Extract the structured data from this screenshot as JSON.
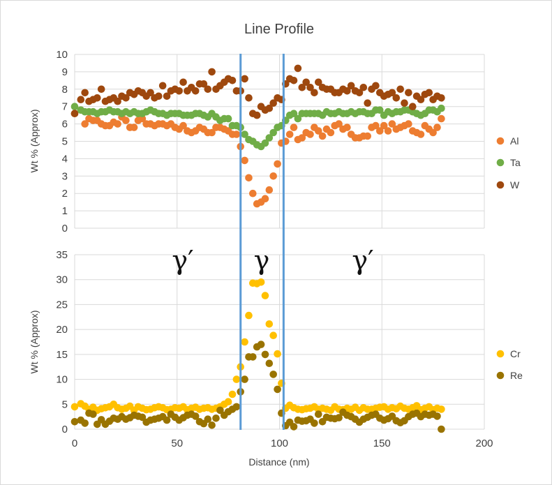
{
  "chart_data": {
    "type": "scatter",
    "title": "Line Profile",
    "xlabel": "Distance (nm)",
    "xlim": [
      0,
      200
    ],
    "xticks": [
      0,
      50,
      100,
      150,
      200
    ],
    "boundaries_x": [
      81,
      102
    ],
    "phase_labels": [
      "γ′",
      "γ",
      "γ′"
    ],
    "colors": {
      "Al": "#ED7D31",
      "Ta": "#70AD47",
      "W": "#9E480E",
      "Cr": "#FFC000",
      "Re": "#997300",
      "boundary": "#5B9BD5"
    },
    "panels": [
      {
        "ylabel": "Wt % (Approx)",
        "ylim": [
          0,
          10
        ],
        "yticks": [
          0,
          1,
          2,
          3,
          4,
          5,
          6,
          7,
          8,
          9,
          10
        ],
        "series": [
          {
            "name": "Al",
            "x": [
              0,
              3,
              5,
              7,
              9,
              11,
              13,
              15,
              17,
              19,
              21,
              23,
              25,
              27,
              29,
              31,
              33,
              35,
              37,
              39,
              41,
              43,
              45,
              47,
              49,
              51,
              53,
              55,
              57,
              59,
              61,
              63,
              65,
              67,
              69,
              71,
              73,
              75,
              77,
              79,
              81,
              83,
              85,
              87,
              89,
              91,
              93,
              95,
              97,
              99,
              101,
              103,
              105,
              107,
              109,
              111,
              113,
              115,
              117,
              119,
              121,
              123,
              125,
              127,
              129,
              131,
              133,
              135,
              137,
              139,
              141,
              143,
              145,
              147,
              149,
              151,
              153,
              155,
              157,
              159,
              161,
              163,
              165,
              167,
              169,
              171,
              173,
              175,
              177,
              179
            ],
            "y": [
              6.6,
              6.8,
              6.0,
              6.3,
              6.2,
              6.2,
              6.0,
              5.9,
              5.9,
              6.1,
              6.0,
              6.4,
              6.2,
              5.8,
              5.8,
              6.2,
              6.3,
              6.0,
              6.0,
              5.9,
              6.0,
              6.0,
              5.9,
              6.0,
              5.8,
              5.7,
              5.9,
              5.6,
              5.5,
              5.6,
              5.8,
              5.7,
              5.5,
              5.5,
              5.8,
              5.8,
              5.7,
              5.6,
              5.4,
              5.4,
              4.7,
              3.9,
              2.9,
              2.0,
              1.4,
              1.5,
              1.7,
              2.2,
              3.0,
              3.7,
              4.9,
              5.0,
              5.4,
              5.8,
              5.1,
              5.2,
              5.5,
              5.4,
              5.8,
              5.6,
              5.3,
              5.7,
              5.5,
              5.9,
              6.0,
              5.7,
              5.8,
              5.4,
              5.2,
              5.2,
              5.3,
              5.3,
              5.8,
              5.9,
              5.6,
              5.9,
              5.6,
              6.0,
              5.7,
              5.8,
              5.9,
              6.0,
              5.6,
              5.5,
              5.4,
              5.9,
              5.7,
              5.5,
              5.8,
              6.3
            ]
          },
          {
            "name": "Ta",
            "x": [
              0,
              3,
              5,
              7,
              9,
              11,
              13,
              15,
              17,
              19,
              21,
              23,
              25,
              27,
              29,
              31,
              33,
              35,
              37,
              39,
              41,
              43,
              45,
              47,
              49,
              51,
              53,
              55,
              57,
              59,
              61,
              63,
              65,
              67,
              69,
              71,
              73,
              75,
              77,
              79,
              81,
              83,
              85,
              87,
              89,
              91,
              93,
              95,
              97,
              99,
              101,
              103,
              105,
              107,
              109,
              111,
              113,
              115,
              117,
              119,
              121,
              123,
              125,
              127,
              129,
              131,
              133,
              135,
              137,
              139,
              141,
              143,
              145,
              147,
              149,
              151,
              153,
              155,
              157,
              159,
              161,
              163,
              165,
              167,
              169,
              171,
              173,
              175,
              177,
              179
            ],
            "y": [
              7.0,
              6.8,
              6.7,
              6.7,
              6.7,
              6.6,
              6.7,
              6.7,
              6.8,
              6.7,
              6.7,
              6.6,
              6.7,
              6.6,
              6.7,
              6.6,
              6.6,
              6.7,
              6.8,
              6.7,
              6.6,
              6.6,
              6.5,
              6.6,
              6.6,
              6.6,
              6.5,
              6.5,
              6.5,
              6.6,
              6.6,
              6.5,
              6.4,
              6.6,
              6.4,
              6.2,
              6.3,
              6.3,
              5.9,
              5.9,
              5.8,
              5.4,
              5.1,
              5.0,
              4.8,
              4.7,
              4.9,
              5.2,
              5.5,
              5.8,
              5.9,
              6.2,
              6.5,
              6.6,
              6.3,
              6.6,
              6.6,
              6.6,
              6.6,
              6.6,
              6.5,
              6.7,
              6.6,
              6.6,
              6.7,
              6.6,
              6.6,
              6.7,
              6.6,
              6.7,
              6.7,
              6.6,
              6.6,
              6.8,
              6.8,
              6.5,
              6.7,
              6.6,
              6.7,
              6.7,
              6.8,
              6.8,
              6.7,
              6.6,
              6.5,
              6.6,
              6.8,
              6.8,
              6.7,
              6.9
            ]
          },
          {
            "name": "W",
            "x": [
              0,
              3,
              5,
              7,
              9,
              11,
              13,
              15,
              17,
              19,
              21,
              23,
              25,
              27,
              29,
              31,
              33,
              35,
              37,
              39,
              41,
              43,
              45,
              47,
              49,
              51,
              53,
              55,
              57,
              59,
              61,
              63,
              65,
              67,
              69,
              71,
              73,
              75,
              77,
              79,
              81,
              83,
              85,
              87,
              89,
              91,
              93,
              95,
              97,
              99,
              101,
              103,
              105,
              107,
              109,
              111,
              113,
              115,
              117,
              119,
              121,
              123,
              125,
              127,
              129,
              131,
              133,
              135,
              137,
              139,
              141,
              143,
              145,
              147,
              149,
              151,
              153,
              155,
              157,
              159,
              161,
              163,
              165,
              167,
              169,
              171,
              173,
              175,
              177,
              179
            ],
            "y": [
              6.6,
              7.4,
              7.8,
              7.3,
              7.4,
              7.5,
              8.0,
              7.3,
              7.4,
              7.5,
              7.3,
              7.6,
              7.5,
              7.8,
              7.7,
              7.9,
              7.8,
              7.6,
              7.8,
              7.5,
              7.6,
              8.2,
              7.6,
              7.9,
              8.0,
              7.9,
              8.4,
              7.9,
              8.1,
              7.9,
              8.3,
              8.3,
              8.0,
              9.0,
              8.0,
              8.2,
              8.4,
              8.6,
              8.5,
              7.9,
              7.9,
              8.6,
              7.5,
              6.6,
              6.5,
              7.0,
              6.8,
              6.9,
              7.2,
              7.5,
              7.4,
              8.3,
              8.6,
              8.5,
              9.2,
              8.1,
              8.4,
              8.1,
              7.8,
              8.4,
              8.1,
              8.0,
              8.0,
              7.8,
              7.8,
              8.0,
              7.9,
              8.2,
              7.9,
              7.8,
              8.1,
              7.2,
              8.0,
              8.2,
              7.8,
              7.6,
              7.7,
              7.8,
              7.5,
              8.0,
              7.2,
              7.8,
              7.0,
              7.6,
              7.4,
              7.7,
              7.8,
              7.4,
              7.6,
              7.5
            ]
          }
        ]
      },
      {
        "ylabel": "Wt % (Approx)",
        "ylim": [
          0,
          35
        ],
        "yticks": [
          0,
          5,
          10,
          15,
          20,
          25,
          30,
          35
        ],
        "series": [
          {
            "name": "Cr",
            "x": [
              0,
              3,
              5,
              7,
              9,
              11,
              13,
              15,
              17,
              19,
              21,
              23,
              25,
              27,
              29,
              31,
              33,
              35,
              37,
              39,
              41,
              43,
              45,
              47,
              49,
              51,
              53,
              55,
              57,
              59,
              61,
              63,
              65,
              67,
              69,
              71,
              73,
              75,
              77,
              79,
              81,
              83,
              85,
              87,
              89,
              91,
              93,
              95,
              97,
              99,
              101,
              103,
              105,
              107,
              109,
              111,
              113,
              115,
              117,
              119,
              121,
              123,
              125,
              127,
              129,
              131,
              133,
              135,
              137,
              139,
              141,
              143,
              145,
              147,
              149,
              151,
              153,
              155,
              157,
              159,
              161,
              163,
              165,
              167,
              169,
              171,
              173,
              175,
              177,
              179
            ],
            "y": [
              4.5,
              5.1,
              4.6,
              4.0,
              4.4,
              3.8,
              4.1,
              4.3,
              4.5,
              5.0,
              4.3,
              4.0,
              4.2,
              4.6,
              3.8,
              4.5,
              4.2,
              3.9,
              4.0,
              4.3,
              4.5,
              4.3,
              3.9,
              4.0,
              4.3,
              4.2,
              4.5,
              3.9,
              4.2,
              4.4,
              4.0,
              4.2,
              4.3,
              4.0,
              4.2,
              4.5,
              5.0,
              5.5,
              7.0,
              10.0,
              12.5,
              17.5,
              22.8,
              29.3,
              29.2,
              29.5,
              26.8,
              21.1,
              18.8,
              15.1,
              9.2,
              4.2,
              4.8,
              4.3,
              4.0,
              3.9,
              4.1,
              4.2,
              4.5,
              4.0,
              4.2,
              4.0,
              3.8,
              4.5,
              4.0,
              3.9,
              4.2,
              4.0,
              4.4,
              3.8,
              4.3,
              4.0,
              4.0,
              4.2,
              4.4,
              4.5,
              4.0,
              4.3,
              4.1,
              4.6,
              4.2,
              4.0,
              4.3,
              4.7,
              3.9,
              4.2,
              4.5,
              3.9,
              4.2,
              4.0
            ]
          },
          {
            "name": "Re",
            "x": [
              0,
              3,
              5,
              7,
              9,
              11,
              13,
              15,
              17,
              19,
              21,
              23,
              25,
              27,
              29,
              31,
              33,
              35,
              37,
              39,
              41,
              43,
              45,
              47,
              49,
              51,
              53,
              55,
              57,
              59,
              61,
              63,
              65,
              67,
              69,
              71,
              73,
              75,
              77,
              79,
              81,
              83,
              85,
              87,
              89,
              91,
              93,
              95,
              97,
              99,
              101,
              103,
              105,
              107,
              109,
              111,
              113,
              115,
              117,
              119,
              121,
              123,
              125,
              127,
              129,
              131,
              133,
              135,
              137,
              139,
              141,
              143,
              145,
              147,
              149,
              151,
              153,
              155,
              157,
              159,
              161,
              163,
              165,
              167,
              169,
              171,
              173,
              175,
              177,
              179
            ],
            "y": [
              1.5,
              1.8,
              1.2,
              3.2,
              3.0,
              1.0,
              1.9,
              1.0,
              1.6,
              2.2,
              2.0,
              2.5,
              2.0,
              2.3,
              2.8,
              2.6,
              2.4,
              1.4,
              1.8,
              2.0,
              2.2,
              2.5,
              1.8,
              3.0,
              2.4,
              1.8,
              2.3,
              2.8,
              3.0,
              2.6,
              1.5,
              1.1,
              2.0,
              0.8,
              2.2,
              3.8,
              2.8,
              3.5,
              4.0,
              4.5,
              7.5,
              10.0,
              14.5,
              14.5,
              16.5,
              17.0,
              15.0,
              13.2,
              11.0,
              8.0,
              3.2,
              0.7,
              1.4,
              0.5,
              1.8,
              1.6,
              1.7,
              2.0,
              1.2,
              3.0,
              1.5,
              2.4,
              2.2,
              2.1,
              2.3,
              3.4,
              2.8,
              2.5,
              2.0,
              1.4,
              2.0,
              2.4,
              2.8,
              3.0,
              2.2,
              1.8,
              2.1,
              2.6,
              1.7,
              1.3,
              1.7,
              2.5,
              3.0,
              3.2,
              2.5,
              3.0,
              2.8,
              3.0,
              2.6,
              0.0
            ]
          }
        ]
      }
    ]
  }
}
